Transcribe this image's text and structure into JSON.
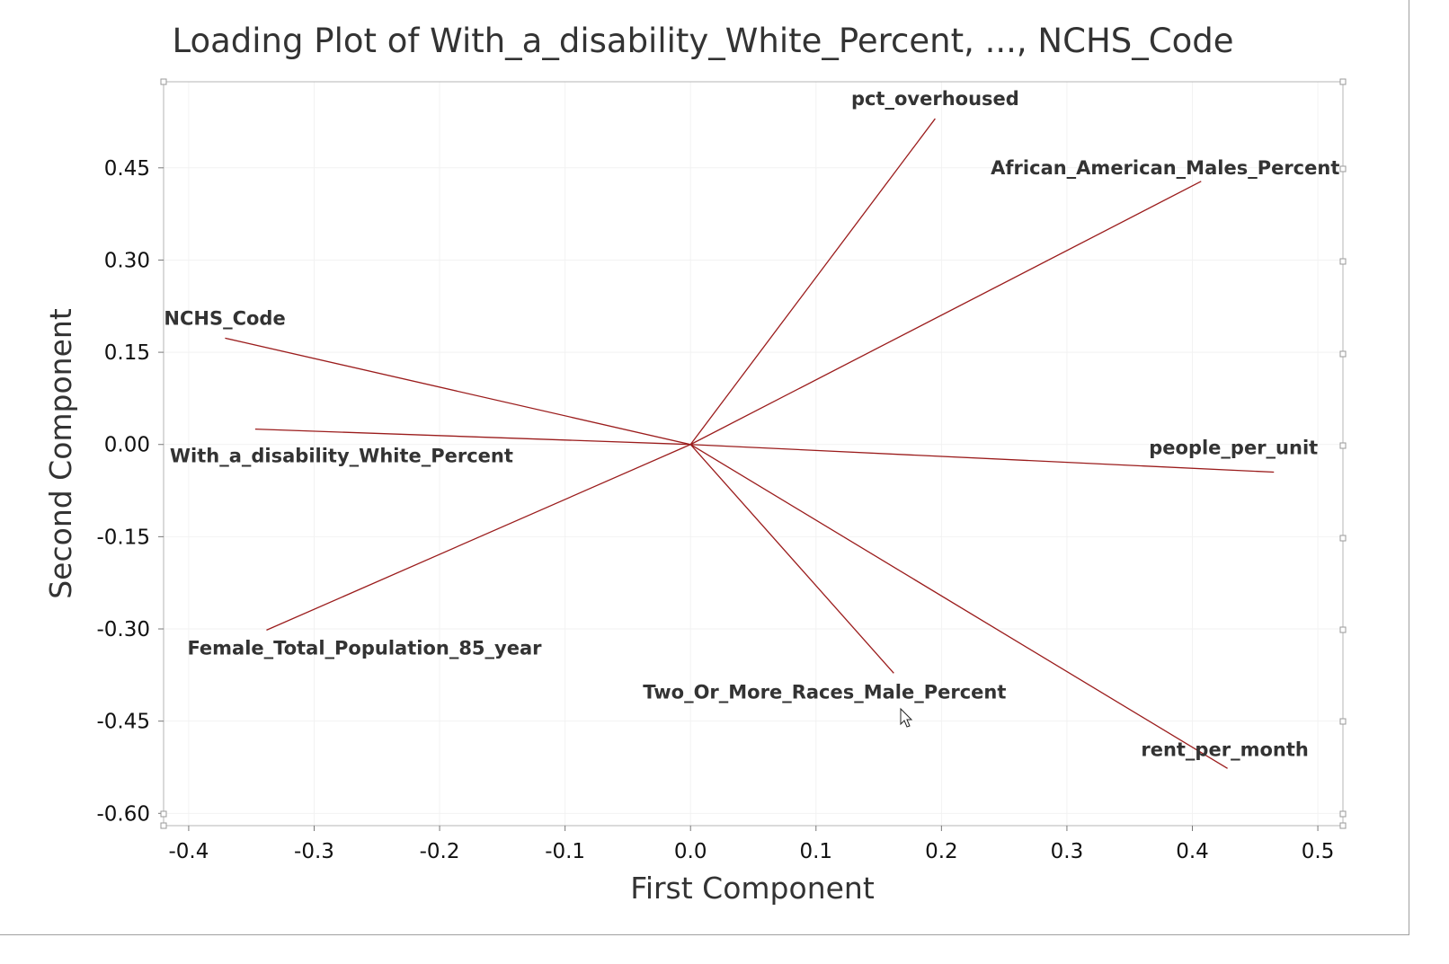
{
  "chart_data": {
    "type": "scatter",
    "subtype": "loading-plot",
    "title": "Loading Plot of With_a_disability_White_Percent, ..., NCHS_Code",
    "xlabel": "First Component",
    "ylabel": "Second Component",
    "xlim": [
      -0.42,
      0.52
    ],
    "ylim": [
      -0.62,
      0.59
    ],
    "xticks": [
      -0.4,
      -0.3,
      -0.2,
      -0.1,
      0.0,
      0.1,
      0.2,
      0.3,
      0.4,
      0.5
    ],
    "xtick_labels": [
      "-0.4",
      "-0.3",
      "-0.2",
      "-0.1",
      "0.0",
      "0.1",
      "0.2",
      "0.3",
      "0.4",
      "0.5"
    ],
    "yticks": [
      0.45,
      0.3,
      0.15,
      0.0,
      -0.15,
      -0.3,
      -0.45,
      -0.6
    ],
    "ytick_labels": [
      "0.45",
      "0.30",
      "0.15",
      "0.00",
      "-0.15",
      "-0.30",
      "-0.45",
      "-0.60"
    ],
    "grid": true,
    "line_color": "#9b1c1c",
    "loadings": [
      {
        "name": "pct_overhoused",
        "x": 0.195,
        "y": 0.53
      },
      {
        "name": "African_American_Males_Percent",
        "x": 0.407,
        "y": 0.428
      },
      {
        "name": "NCHS_Code",
        "x": -0.371,
        "y": 0.173
      },
      {
        "name": "With_a_disability_White_Percent",
        "x": -0.347,
        "y": 0.025
      },
      {
        "name": "people_per_unit",
        "x": 0.465,
        "y": -0.045
      },
      {
        "name": "Female_Total_Population_85_year",
        "x": -0.338,
        "y": -0.302
      },
      {
        "name": "Two_Or_More_Races_Male_Percent",
        "x": 0.162,
        "y": -0.372
      },
      {
        "name": "rent_per_month",
        "x": 0.428,
        "y": -0.527
      }
    ]
  }
}
